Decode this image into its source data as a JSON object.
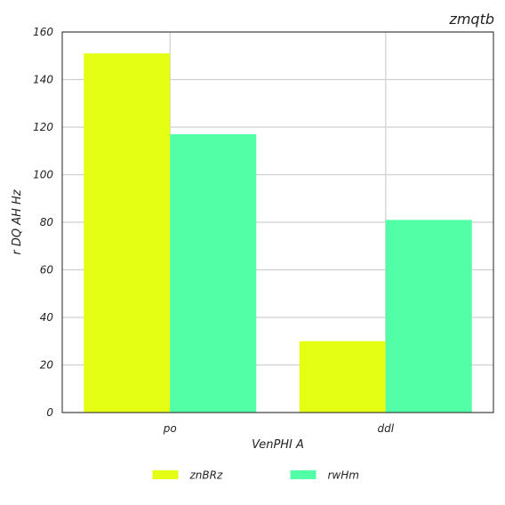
{
  "chart_data": {
    "type": "bar",
    "title": "zmqtb",
    "xlabel": "VenPHI A",
    "ylabel": "r  DQ AH Hz",
    "categories": [
      "po",
      "ddl"
    ],
    "series": [
      {
        "name": "znBRz",
        "values": [
          151,
          30
        ],
        "color": "#e5ff14"
      },
      {
        "name": "rwHm",
        "values": [
          117,
          81
        ],
        "color": "#52ffa6"
      }
    ],
    "ylim": [
      0,
      160
    ],
    "yticks": [
      0,
      20,
      40,
      60,
      80,
      100,
      120,
      140,
      160
    ],
    "grid": true,
    "legend_position": "bottom"
  }
}
